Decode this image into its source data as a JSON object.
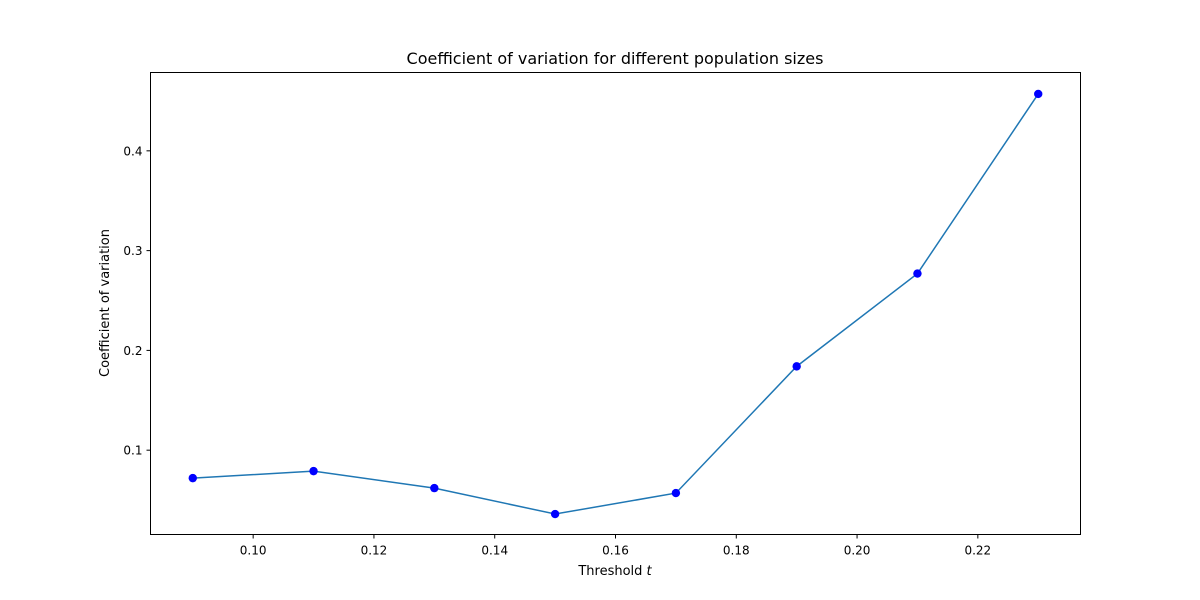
{
  "chart_data": {
    "type": "line",
    "title": "Coefficient of variation for different population sizes",
    "xlabel_prefix": "Threshold ",
    "xlabel_var": "t",
    "ylabel": "Coefficient of variation",
    "x": [
      0.09,
      0.11,
      0.13,
      0.15,
      0.17,
      0.19,
      0.21,
      0.23
    ],
    "series": [
      {
        "values": [
          0.072,
          0.079,
          0.062,
          0.036,
          0.057,
          0.184,
          0.277,
          0.457
        ],
        "line_color": "#1f77b4",
        "marker_color": "#0000ff"
      }
    ],
    "xlim": [
      0.083,
      0.237
    ],
    "ylim": [
      0.0155,
      0.4785
    ],
    "xticks": [
      0.1,
      0.12,
      0.14,
      0.16,
      0.18,
      0.2,
      0.22
    ],
    "xtick_labels": [
      "0.10",
      "0.12",
      "0.14",
      "0.16",
      "0.18",
      "0.20",
      "0.22"
    ],
    "yticks": [
      0.1,
      0.2,
      0.3,
      0.4
    ],
    "ytick_labels": [
      "0.1",
      "0.2",
      "0.3",
      "0.4"
    ],
    "grid": false,
    "legend": "none"
  }
}
